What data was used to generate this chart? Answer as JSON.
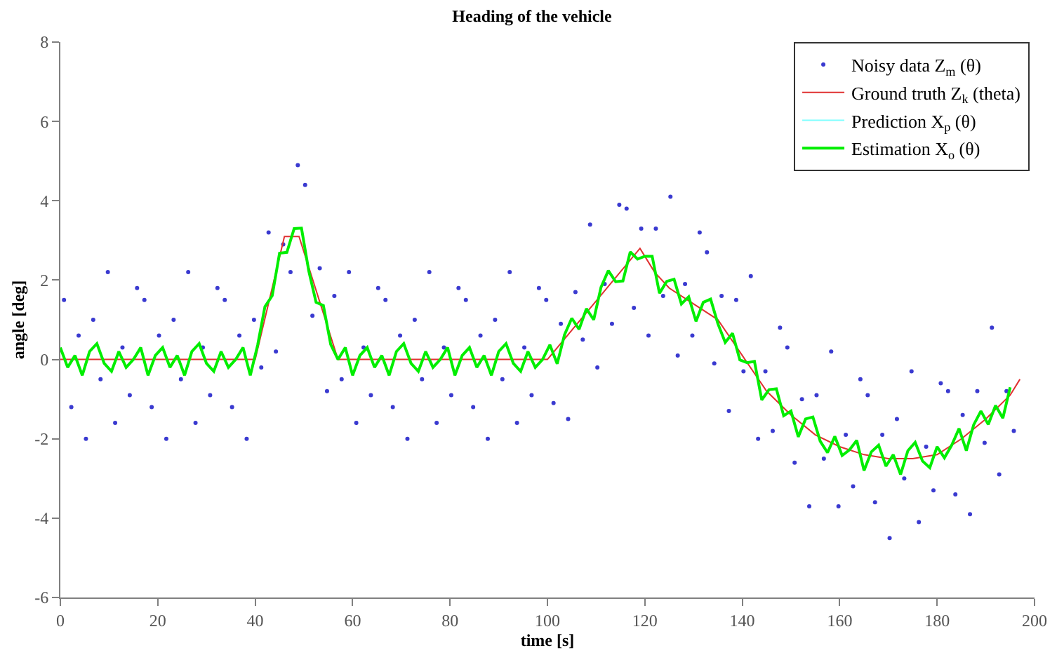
{
  "chart_data": {
    "type": "scatter",
    "title": "Heading of the vehicle",
    "xlabel": "time [s]",
    "ylabel": "angle [deg]",
    "xlim": [
      0,
      200
    ],
    "ylim": [
      -6,
      8
    ],
    "xticks": [
      0,
      20,
      40,
      60,
      80,
      100,
      120,
      140,
      160,
      180,
      200
    ],
    "yticks": [
      -6,
      -4,
      -2,
      0,
      2,
      4,
      6,
      8
    ],
    "legend": "top right",
    "series": [
      {
        "name": "Noisy data Z$_{m}$ (θ)",
        "marker": "circle",
        "color": "#3a3ad0",
        "x": [
          0.75,
          2.25,
          3.75,
          5.25,
          6.75,
          8.25,
          9.75,
          11.25,
          12.75,
          14.25,
          15.75,
          17.25,
          18.75,
          20.25,
          21.75,
          23.25,
          24.75,
          26.25,
          27.75,
          29.25,
          30.75,
          32.25,
          33.75,
          35.25,
          36.75,
          38.25,
          39.75,
          41.25,
          42.75,
          44.25,
          45.75,
          47.25,
          48.75,
          50.25,
          51.75,
          53.25,
          54.75,
          56.25,
          57.75,
          59.25,
          60.75,
          62.25,
          63.75,
          65.25,
          66.75,
          68.25,
          69.75,
          71.25,
          72.75,
          74.25,
          75.75,
          77.25,
          78.75,
          80.25,
          81.75,
          83.25,
          84.75,
          86.25,
          87.75,
          89.25,
          90.75,
          92.25,
          93.75,
          95.25,
          96.75,
          98.25,
          99.75,
          101.25,
          102.75,
          104.25,
          105.75,
          107.25,
          108.75,
          110.25,
          111.75,
          113.25,
          114.75,
          116.25,
          117.75,
          119.25,
          120.75,
          122.25,
          123.75,
          125.25,
          126.75,
          128.25,
          129.75,
          131.25,
          132.75,
          134.25,
          135.75,
          137.25,
          138.75,
          140.25,
          141.75,
          143.25,
          144.75,
          146.25,
          147.75,
          149.25,
          150.75,
          152.25,
          153.75,
          155.25,
          156.75,
          158.25,
          159.75,
          161.25,
          162.75,
          164.25,
          165.75,
          167.25,
          168.75,
          170.25,
          171.75,
          173.25,
          174.75,
          176.25,
          177.75,
          179.25,
          180.75,
          182.25,
          183.75,
          185.25,
          186.75,
          188.25,
          189.75,
          191.25,
          192.75,
          194.25,
          195.75
        ],
        "values": [
          1.5,
          -1.2,
          0.6,
          -2,
          1,
          -0.5,
          2.2,
          -1.6,
          0.3,
          -0.9,
          1.8,
          1.5,
          -1.2,
          0.6,
          -2,
          1,
          -0.5,
          2.2,
          -1.6,
          0.3,
          -0.9,
          1.8,
          1.5,
          -1.2,
          0.6,
          -2,
          1,
          -0.2,
          3.2,
          0.2,
          2.9,
          2.2,
          4.9,
          4.4,
          1.1,
          2.3,
          -0.8,
          1.6,
          -0.5,
          2.2,
          -1.6,
          0.3,
          -0.9,
          1.8,
          1.5,
          -1.2,
          0.6,
          -2,
          1,
          -0.5,
          2.2,
          -1.6,
          0.3,
          -0.9,
          1.8,
          1.5,
          -1.2,
          0.6,
          -2,
          1,
          -0.5,
          2.2,
          -1.6,
          0.3,
          -0.9,
          1.8,
          1.5,
          -1.1,
          0.9,
          -1.5,
          1.7,
          0.5,
          3.4,
          -0.2,
          1.9,
          0.9,
          3.9,
          3.8,
          1.3,
          3.3,
          0.6,
          3.3,
          1.6,
          4.1,
          0.1,
          1.9,
          0.6,
          3.2,
          2.7,
          -0.1,
          1.6,
          -1.3,
          1.5,
          -0.3,
          2.1,
          -2.0,
          -0.3,
          -1.8,
          0.8,
          0.3,
          -2.6,
          -1.0,
          -3.7,
          -0.9,
          -2.5,
          0.2,
          -3.7,
          -1.9,
          -3.2,
          -0.5,
          -0.9,
          -3.6,
          -1.9,
          -4.5,
          -1.5,
          -3.0,
          -0.3,
          -4.1,
          -2.2,
          -3.3,
          -0.6,
          -0.8,
          -3.4,
          -1.4,
          -3.9,
          -0.8,
          -2.1,
          0.8,
          -2.9,
          -0.8,
          -1.8
        ]
      },
      {
        "name": "Ground truth Z$_{k}$ (theta)",
        "type": "line",
        "marker": "none",
        "color": "#e03030",
        "x": [
          0,
          40,
          46,
          49,
          57,
          100,
          119,
          122,
          125,
          130,
          135,
          140,
          145,
          150,
          155,
          160,
          165,
          170,
          175,
          180,
          185,
          190,
          195,
          197
        ],
        "values": [
          0,
          0,
          3.1,
          3.1,
          0,
          0,
          2.8,
          2.2,
          1.8,
          1.4,
          1.0,
          0.1,
          -0.8,
          -1.4,
          -1.9,
          -2.2,
          -2.4,
          -2.5,
          -2.5,
          -2.4,
          -2.0,
          -1.5,
          -0.9,
          -0.5
        ]
      },
      {
        "name": "Prediction X$_{p}$ (θ)",
        "type": "line",
        "marker": "none",
        "color": "#80ffff"
      },
      {
        "name": "Estimation X$_{o}$ (θ)",
        "type": "line",
        "marker": "none",
        "color": "#00ee00",
        "x": [
          0,
          1.5,
          3,
          4.5,
          6,
          7.5,
          9,
          10.5,
          12,
          13.5,
          15,
          16.5,
          18,
          19.5,
          21,
          22.5,
          24,
          25.5,
          27,
          28.5,
          30,
          31.5,
          33,
          34.5,
          36,
          37.5,
          39,
          40.5,
          42,
          43.5,
          45,
          46.5,
          48,
          49.5,
          51,
          52.5,
          54,
          55.5,
          57,
          58.5,
          60,
          61.5,
          63,
          64.5,
          66,
          67.5,
          69,
          70.5,
          72,
          73.5,
          75,
          76.5,
          78,
          79.5,
          81,
          82.5,
          84,
          85.5,
          87,
          88.5,
          90,
          91.5,
          93,
          94.5,
          96,
          97.5,
          99,
          100.5,
          102,
          103.5,
          105,
          106.5,
          108,
          109.5,
          111,
          112.5,
          114,
          115.5,
          117,
          118.5,
          120,
          121.5,
          123,
          124.5,
          126,
          127.5,
          129,
          130.5,
          132,
          133.5,
          135,
          136.5,
          138,
          139.5,
          141,
          142.5,
          144,
          145.5,
          147,
          148.5,
          150,
          151.5,
          153,
          154.5,
          156,
          157.5,
          159,
          160.5,
          162,
          163.5,
          165,
          166.5,
          168,
          169.5,
          171,
          172.5,
          174,
          175.5,
          177,
          178.5,
          180,
          181.5,
          183,
          184.5,
          186,
          187.5,
          189,
          190.5,
          192,
          193.5,
          195
        ],
        "values": [
          0.3,
          -0.2,
          0.1,
          -0.4,
          0.2,
          0.4,
          -0.1,
          -0.3,
          0.2,
          -0.2,
          0,
          0.3,
          -0.4,
          0.1,
          0.3,
          -0.2,
          0.1,
          -0.4,
          0.2,
          0.4,
          -0.1,
          -0.3,
          0.2,
          -0.2,
          0,
          0.3,
          -0.4,
          0.36,
          1.33,
          1.61,
          2.68,
          2.7,
          3.3,
          3.31,
          2.23,
          1.44,
          1.36,
          0.38,
          0,
          0.3,
          -0.4,
          0.1,
          0.3,
          -0.2,
          0.1,
          -0.4,
          0.2,
          0.4,
          -0.1,
          -0.3,
          0.2,
          -0.2,
          0,
          0.3,
          -0.4,
          0.1,
          0.3,
          -0.2,
          0.1,
          -0.4,
          0.2,
          0.4,
          -0.1,
          -0.3,
          0.2,
          -0.2,
          0,
          0.37,
          -0.11,
          0.62,
          1.04,
          0.76,
          1.28,
          1.0,
          1.82,
          2.24,
          1.96,
          1.98,
          2.71,
          2.53,
          2.6,
          2.6,
          1.67,
          1.97,
          2.02,
          1.4,
          1.58,
          0.96,
          1.44,
          1.52,
          0.9,
          0.43,
          0.66,
          -0.01,
          -0.08,
          -0.05,
          -1.02,
          -0.76,
          -0.74,
          -1.42,
          -1.3,
          -1.95,
          -1.5,
          -1.45,
          -2.06,
          -2.35,
          -1.94,
          -2.42,
          -2.28,
          -2.04,
          -2.8,
          -2.33,
          -2.16,
          -2.69,
          -2.4,
          -2.9,
          -2.3,
          -2.09,
          -2.56,
          -2.73,
          -2.2,
          -2.48,
          -2.16,
          -1.74,
          -2.3,
          -1.65,
          -1.3,
          -1.64,
          -1.16,
          -1.48,
          -0.7
        ]
      }
    ]
  }
}
